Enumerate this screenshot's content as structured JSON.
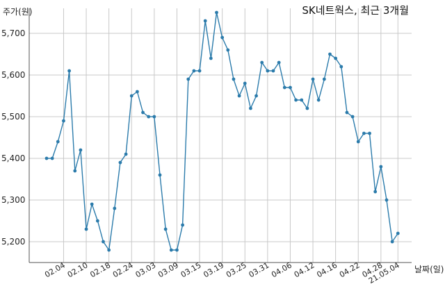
{
  "chart_data": {
    "type": "line",
    "title": "SK네트웍스, 최근 3개월",
    "xlabel": "날짜(일)",
    "ylabel": "주가(원)",
    "ylim": [
      5150,
      5760
    ],
    "grid": true,
    "y_ticks": [
      5200,
      5300,
      5400,
      5500,
      5600,
      5700
    ],
    "y_tick_labels": [
      "5,200",
      "5,300",
      "5,400",
      "5,500",
      "5,600",
      "5,700"
    ],
    "x_tick_labels": [
      "02.04",
      "02.10",
      "02.18",
      "02.24",
      "03.03",
      "03.09",
      "03.15",
      "03.19",
      "03.25",
      "03.31",
      "04.06",
      "04.12",
      "04.16",
      "04.22",
      "04.28",
      "21.05.04"
    ],
    "x_tick_positions": [
      3,
      7,
      11,
      15,
      19,
      23,
      27,
      31,
      35,
      39,
      43,
      47,
      51,
      55,
      59,
      62
    ],
    "series": [
      {
        "color": "#2b7bab",
        "values": [
          5400,
          5400,
          5440,
          5490,
          5610,
          5370,
          5420,
          5230,
          5290,
          5250,
          5200,
          5180,
          5280,
          5390,
          5410,
          5550,
          5560,
          5510,
          5500,
          5500,
          5360,
          5230,
          5180,
          5180,
          5240,
          5590,
          5610,
          5610,
          5730,
          5640,
          5750,
          5690,
          5660,
          5590,
          5550,
          5580,
          5520,
          5550,
          5630,
          5610,
          5610,
          5630,
          5570,
          5570,
          5540,
          5540,
          5520,
          5590,
          5540,
          5590,
          5650,
          5640,
          5620,
          5510,
          5500,
          5440,
          5460,
          5460,
          5320,
          5380,
          5300,
          5200,
          5220
        ]
      }
    ]
  }
}
